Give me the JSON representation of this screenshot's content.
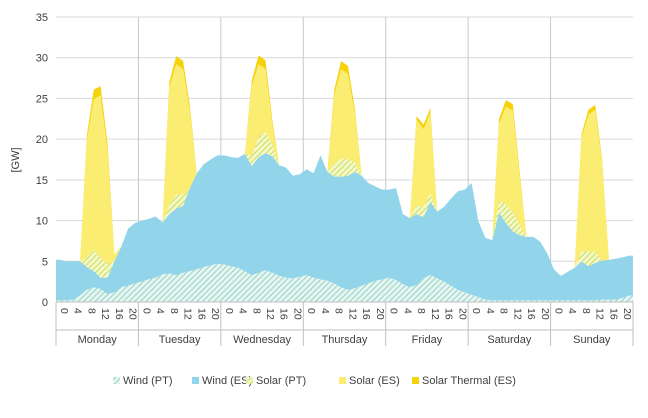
{
  "chart_data": {
    "type": "area",
    "stacked": true,
    "title": "",
    "ylabel": "[GW]",
    "xlabel": "",
    "ylim": [
      0,
      35
    ],
    "yticks": [
      0,
      5,
      10,
      15,
      20,
      25,
      30,
      35
    ],
    "grid": "horizontal",
    "legend_position": "bottom",
    "hour_ticks": [
      "0",
      "4",
      "8",
      "12",
      "16",
      "20"
    ],
    "days": [
      "Monday",
      "Tuesday",
      "Wednesday",
      "Thursday",
      "Friday",
      "Saturday",
      "Sunday"
    ],
    "x_step_hours": 2,
    "series": [
      {
        "name": "Wind (PT)",
        "color": "#a8dcd0",
        "pattern": "hatch",
        "values": [
          0.2,
          0.2,
          0.3,
          0.8,
          1.5,
          1.8,
          1.6,
          1.0,
          1.2,
          1.8,
          2.0,
          2.3,
          2.5,
          2.8,
          3.0,
          3.4,
          3.5,
          3.3,
          3.6,
          3.8,
          4.0,
          4.3,
          4.5,
          4.7,
          4.6,
          4.4,
          4.2,
          3.8,
          3.3,
          3.6,
          3.9,
          3.6,
          3.2,
          3.0,
          2.9,
          3.1,
          3.3,
          3.0,
          2.8,
          2.6,
          2.3,
          1.8,
          1.5,
          1.7,
          2.0,
          2.3,
          2.6,
          2.8,
          3.0,
          2.7,
          2.2,
          1.8,
          2.1,
          2.9,
          3.3,
          2.9,
          2.5,
          2.0,
          1.5,
          1.2,
          0.9,
          0.6,
          0.3,
          0.2,
          0.2,
          0.2,
          0.2,
          0.2,
          0.2,
          0.2,
          0.2,
          0.2,
          0.2,
          0.2,
          0.2,
          0.2,
          0.2,
          0.2,
          0.2,
          0.3,
          0.3,
          0.3,
          0.5,
          0.8
        ]
      },
      {
        "name": "Wind (ES)",
        "color": "#92d5ea",
        "pattern": "solid",
        "values": [
          5.0,
          4.8,
          4.7,
          4.2,
          2.8,
          2.0,
          1.4,
          2.0,
          3.8,
          5.0,
          7.0,
          7.4,
          7.5,
          7.4,
          7.5,
          6.4,
          7.3,
          8.2,
          8.2,
          10.2,
          11.8,
          12.6,
          13.0,
          13.3,
          13.4,
          13.4,
          13.5,
          14.4,
          13.4,
          14.2,
          14.4,
          14.3,
          13.6,
          13.5,
          12.6,
          12.6,
          13.0,
          12.8,
          15.2,
          13.4,
          13.1,
          13.6,
          14.0,
          14.3,
          13.5,
          12.3,
          11.6,
          11.0,
          10.8,
          11.3,
          8.6,
          8.5,
          8.7,
          7.5,
          9.0,
          8.2,
          9.2,
          10.7,
          12.1,
          12.6,
          13.7,
          9.3,
          7.6,
          7.4,
          10.8,
          9.5,
          8.5,
          8.0,
          7.8,
          7.8,
          7.2,
          5.8,
          3.8,
          3.0,
          3.5,
          4.0,
          4.8,
          4.2,
          4.6,
          4.8,
          4.9,
          5.0,
          5.0,
          4.9
        ]
      },
      {
        "name": "Solar (PT)",
        "color": "#d6e86a",
        "pattern": "hatch",
        "values": [
          0,
          0,
          0,
          0,
          1.2,
          2.6,
          2.4,
          1.6,
          0,
          0,
          0,
          0,
          0,
          0,
          0,
          0,
          1.1,
          1.7,
          1.4,
          0,
          0,
          0,
          0,
          0,
          0,
          0,
          0,
          0,
          1.3,
          2.4,
          2.6,
          1.4,
          0,
          0,
          0,
          0,
          0,
          0,
          0,
          0,
          1.5,
          2.2,
          2.0,
          1.2,
          0,
          0,
          0,
          0,
          0,
          0,
          0,
          0,
          1.0,
          1.3,
          1.0,
          0,
          0,
          0,
          0,
          0,
          0,
          0,
          0,
          0,
          1.4,
          2.3,
          2.3,
          1.2,
          0,
          0,
          0,
          0,
          0,
          0,
          0,
          0,
          1.2,
          1.8,
          1.3,
          0,
          0,
          0,
          0,
          0
        ]
      },
      {
        "name": "Solar (ES)",
        "color": "#fbed72",
        "pattern": "solid",
        "values": [
          0,
          0,
          0,
          0,
          14.5,
          18.5,
          20.0,
          14.0,
          0.9,
          0,
          0,
          0,
          0,
          0,
          0,
          0,
          14.5,
          16.0,
          15.4,
          9.5,
          0,
          0,
          0,
          0,
          0,
          0,
          0,
          0,
          8.6,
          9.0,
          7.7,
          2.4,
          0,
          0,
          0,
          0,
          0,
          0,
          0,
          0,
          8.5,
          11.0,
          10.5,
          6.0,
          0,
          0,
          0,
          0,
          0,
          0,
          0,
          0,
          10.6,
          9.5,
          10.0,
          0,
          0,
          0,
          0,
          0,
          0,
          0,
          0,
          0,
          9.5,
          12.0,
          12.5,
          6.0,
          0,
          0,
          0,
          0,
          0,
          0,
          0,
          0,
          14.0,
          16.8,
          17.5,
          12.0,
          0,
          0,
          0,
          0
        ]
      },
      {
        "name": "Solar Thermal (ES)",
        "color": "#f5d20a",
        "pattern": "solid",
        "values": [
          0,
          0,
          0,
          0,
          0.5,
          1.2,
          1.1,
          0.9,
          0,
          0,
          0,
          0,
          0,
          0,
          0,
          0,
          0.6,
          1.0,
          1.0,
          0.6,
          0,
          0,
          0,
          0,
          0,
          0,
          0,
          0,
          0.6,
          1.1,
          1.1,
          0.5,
          0,
          0,
          0,
          0,
          0,
          0,
          0,
          0,
          0.6,
          1.0,
          1.0,
          0.6,
          0,
          0,
          0,
          0,
          0,
          0,
          0,
          0,
          0.4,
          0.6,
          0.5,
          0,
          0,
          0,
          0,
          0,
          0,
          0,
          0,
          0,
          0.6,
          0.8,
          0.8,
          0.5,
          0,
          0,
          0,
          0,
          0,
          0,
          0,
          0,
          0.4,
          0.6,
          0.6,
          0.4,
          0,
          0,
          0,
          0
        ]
      }
    ]
  }
}
